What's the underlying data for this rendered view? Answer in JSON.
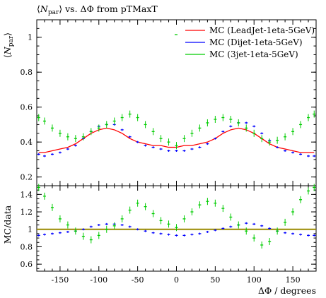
{
  "title": "⟨N_par⟩ vs. ΔΦ from pTMaxT",
  "title_parts": {
    "open": "⟨",
    "sym": "N",
    "sub": "par",
    "rest": "⟩ vs. ΔΦ from pTMaxT"
  },
  "ylabel_parts": {
    "open": "⟨",
    "sym": "N",
    "sub": "par",
    "close": "⟩"
  },
  "ratio_ylabel": "MC/data",
  "xlabel": "ΔΦ / degrees",
  "colors": {
    "LeadJet": "#ff0000",
    "Dijet": "#0000ff",
    "3jet": "#00cc00",
    "ref_line": "#9a8a00"
  },
  "chart_data": [
    {
      "type": "line",
      "panel": "main",
      "xlim": [
        -180,
        180
      ],
      "ylim": [
        0.15,
        1.1
      ],
      "yticks": [
        0.2,
        0.4,
        0.6,
        0.8,
        1
      ],
      "x": [
        -177.5,
        -170,
        -160,
        -150,
        -140,
        -130,
        -120,
        -110,
        -100,
        -90,
        -80,
        -70,
        -60,
        -50,
        -40,
        -30,
        -20,
        -10,
        0,
        10,
        20,
        30,
        40,
        50,
        60,
        70,
        80,
        90,
        100,
        110,
        120,
        130,
        140,
        150,
        160,
        170,
        177.5
      ],
      "series": [
        {
          "name": "MC (LeadJet-1eta-5GeV)",
          "color": "#ff0000",
          "style": "line",
          "values": [
            0.34,
            0.34,
            0.35,
            0.36,
            0.37,
            0.39,
            0.42,
            0.45,
            0.47,
            0.48,
            0.47,
            0.45,
            0.42,
            0.4,
            0.39,
            0.38,
            0.38,
            0.37,
            0.37,
            0.38,
            0.38,
            0.39,
            0.4,
            0.42,
            0.45,
            0.47,
            0.48,
            0.47,
            0.45,
            0.42,
            0.39,
            0.37,
            0.36,
            0.35,
            0.34,
            0.34,
            0.34
          ]
        },
        {
          "name": "MC (Dijet-1eta-5GeV)",
          "color": "#0000ff",
          "style": "markers",
          "values": [
            0.33,
            0.32,
            0.33,
            0.34,
            0.36,
            0.38,
            0.42,
            0.46,
            0.49,
            0.5,
            0.5,
            0.47,
            0.43,
            0.4,
            0.38,
            0.37,
            0.36,
            0.35,
            0.35,
            0.35,
            0.36,
            0.37,
            0.39,
            0.42,
            0.46,
            0.49,
            0.51,
            0.51,
            0.49,
            0.45,
            0.41,
            0.37,
            0.35,
            0.34,
            0.33,
            0.32,
            0.32
          ]
        },
        {
          "name": "MC (3jet-1eta-5GeV)",
          "color": "#00cc00",
          "style": "markers",
          "values": [
            0.54,
            0.52,
            0.48,
            0.45,
            0.43,
            0.42,
            0.43,
            0.46,
            0.48,
            0.5,
            0.52,
            0.54,
            0.56,
            0.54,
            0.5,
            0.46,
            0.42,
            0.4,
            0.38,
            0.42,
            0.45,
            0.48,
            0.51,
            0.53,
            0.54,
            0.53,
            0.51,
            0.48,
            0.45,
            0.42,
            0.4,
            0.41,
            0.43,
            0.46,
            0.5,
            0.54,
            0.56
          ]
        }
      ],
      "legend_position": "top-right"
    },
    {
      "type": "line",
      "panel": "ratio",
      "xlim": [
        -180,
        180
      ],
      "ylim": [
        0.52,
        1.5
      ],
      "yticks": [
        0.6,
        0.8,
        1,
        1.2,
        1.4
      ],
      "xticks": [
        -150,
        -100,
        -50,
        0,
        50,
        100,
        150
      ],
      "reference_line": 1,
      "x": [
        -177.5,
        -170,
        -160,
        -150,
        -140,
        -130,
        -120,
        -110,
        -100,
        -90,
        -80,
        -70,
        -60,
        -50,
        -40,
        -30,
        -20,
        -10,
        0,
        10,
        20,
        30,
        40,
        50,
        60,
        70,
        80,
        90,
        100,
        110,
        120,
        130,
        140,
        150,
        160,
        170,
        177.5
      ],
      "series": [
        {
          "name": "MC (Dijet-1eta-5GeV)",
          "color": "#0000ff",
          "style": "markers",
          "values": [
            0.93,
            0.94,
            0.95,
            0.96,
            0.97,
            0.98,
            1.0,
            1.03,
            1.05,
            1.06,
            1.06,
            1.05,
            1.03,
            1.0,
            0.98,
            0.96,
            0.95,
            0.94,
            0.93,
            0.93,
            0.94,
            0.95,
            0.97,
            0.99,
            1.01,
            1.03,
            1.05,
            1.07,
            1.06,
            1.04,
            1.01,
            0.98,
            0.96,
            0.95,
            0.94,
            0.93,
            0.93
          ]
        },
        {
          "name": "MC (3jet-1eta-5GeV)",
          "color": "#00cc00",
          "style": "markers",
          "values": [
            1.48,
            1.38,
            1.25,
            1.12,
            1.05,
            0.98,
            0.92,
            0.88,
            0.93,
            1.0,
            1.04,
            1.12,
            1.22,
            1.3,
            1.26,
            1.18,
            1.1,
            1.06,
            1.02,
            1.12,
            1.2,
            1.28,
            1.32,
            1.3,
            1.24,
            1.14,
            1.05,
            0.98,
            0.9,
            0.82,
            0.86,
            0.98,
            1.08,
            1.2,
            1.34,
            1.44,
            1.48
          ]
        }
      ]
    }
  ]
}
